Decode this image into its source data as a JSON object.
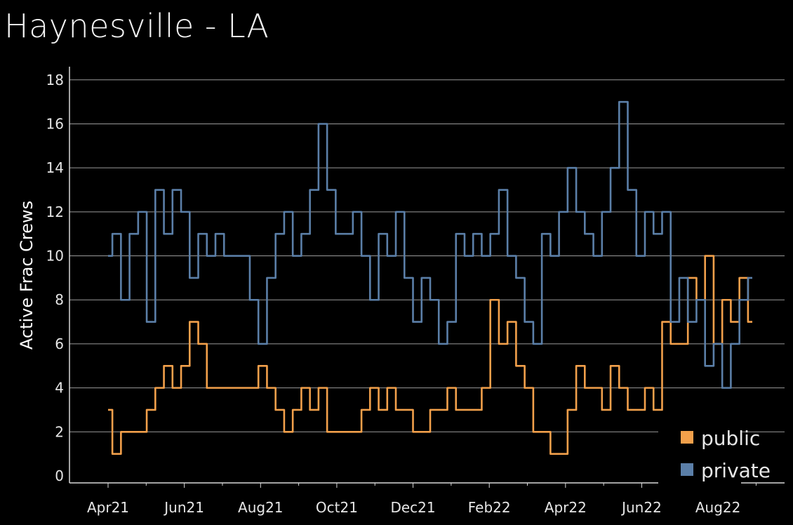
{
  "chart_data": {
    "type": "line",
    "title": "Haynesville - LA",
    "xlabel": "",
    "ylabel": "Active Frac Crews",
    "ylim": [
      0,
      18.6
    ],
    "yticks": [
      0,
      2,
      4,
      6,
      8,
      10,
      12,
      14,
      16,
      18
    ],
    "x_tick_labels": [
      "Apr21",
      "Jun21",
      "Aug21",
      "Oct21",
      "Dec21",
      "Feb22",
      "Apr22",
      "Jun22",
      "Aug22"
    ],
    "x_unit": "weeks since 2021-04-01",
    "grid": "horizontal",
    "legend_position": "bottom-right",
    "series": [
      {
        "name": "public",
        "color": "#F2A04B",
        "x": [
          0,
          1,
          2,
          3,
          4,
          5,
          6,
          7,
          8,
          9,
          10,
          11,
          12,
          13,
          14,
          15,
          16,
          17,
          18,
          19,
          20,
          21,
          22,
          23,
          24,
          25,
          26,
          27,
          28,
          29,
          30,
          31,
          32,
          33,
          34,
          35,
          36,
          37,
          38,
          39,
          40,
          41,
          42,
          43,
          44,
          45,
          46,
          47,
          48,
          49,
          50,
          51,
          52,
          53,
          54,
          55,
          56,
          57,
          58,
          59,
          60,
          61,
          62,
          63,
          64,
          65,
          66,
          67,
          68,
          69,
          70,
          71,
          72,
          73,
          74,
          75
        ],
        "values": [
          3,
          1,
          2,
          2,
          2,
          3,
          4,
          5,
          4,
          5,
          7,
          6,
          4,
          4,
          4,
          4,
          4,
          4,
          5,
          4,
          3,
          2,
          3,
          4,
          3,
          4,
          2,
          2,
          2,
          2,
          3,
          4,
          3,
          4,
          3,
          3,
          2,
          2,
          3,
          3,
          4,
          3,
          3,
          3,
          4,
          8,
          6,
          7,
          5,
          4,
          2,
          2,
          1,
          1,
          3,
          5,
          4,
          4,
          3,
          5,
          4,
          3,
          3,
          4,
          3,
          7,
          6,
          6,
          9,
          8,
          10,
          6,
          8,
          7,
          9,
          7
        ],
        "y_range": [
          1,
          10
        ]
      },
      {
        "name": "private",
        "color": "#5B7FA8",
        "x": [
          0,
          1,
          2,
          3,
          4,
          5,
          6,
          7,
          8,
          9,
          10,
          11,
          12,
          13,
          14,
          15,
          16,
          17,
          18,
          19,
          20,
          21,
          22,
          23,
          24,
          25,
          26,
          27,
          28,
          29,
          30,
          31,
          32,
          33,
          34,
          35,
          36,
          37,
          38,
          39,
          40,
          41,
          42,
          43,
          44,
          45,
          46,
          47,
          48,
          49,
          50,
          51,
          52,
          53,
          54,
          55,
          56,
          57,
          58,
          59,
          60,
          61,
          62,
          63,
          64,
          65,
          66,
          67,
          68,
          69,
          70,
          71,
          72,
          73,
          74,
          75
        ],
        "values": [
          10,
          11,
          8,
          11,
          12,
          7,
          13,
          11,
          13,
          12,
          9,
          11,
          10,
          11,
          10,
          10,
          10,
          8,
          6,
          9,
          11,
          12,
          10,
          11,
          13,
          16,
          13,
          11,
          11,
          12,
          10,
          8,
          11,
          10,
          12,
          9,
          7,
          9,
          8,
          6,
          7,
          11,
          10,
          11,
          10,
          11,
          13,
          10,
          9,
          7,
          6,
          11,
          10,
          12,
          14,
          12,
          11,
          10,
          12,
          14,
          17,
          13,
          10,
          12,
          11,
          12,
          7,
          9,
          7,
          8,
          5,
          6,
          4,
          6,
          8,
          9
        ],
        "y_range": [
          4,
          17
        ]
      }
    ]
  }
}
